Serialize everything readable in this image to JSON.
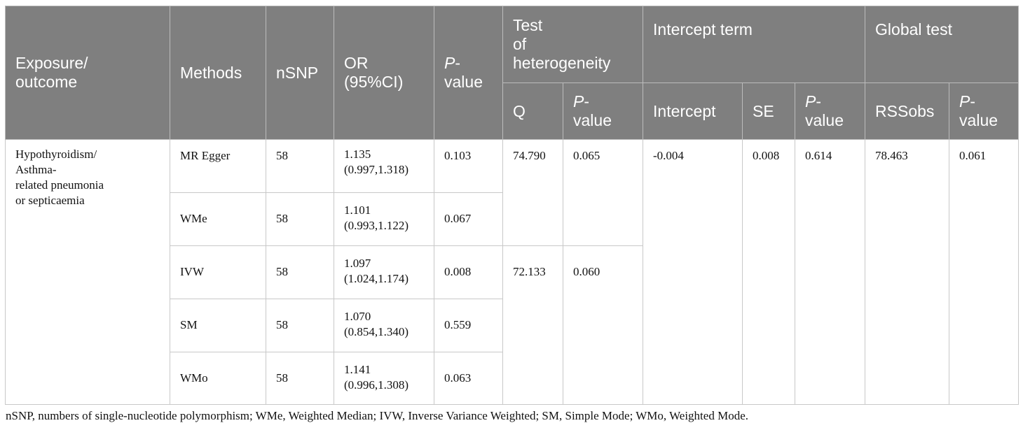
{
  "header": {
    "exposure_outcome": "Exposure/\noutcome",
    "methods": "Methods",
    "nsnp": "nSNP",
    "or_ci": "OR\n(95%CI)",
    "p_italic": "P",
    "p_rest": "-\nvalue",
    "test_heterogeneity": "Test\nof\nheterogeneity",
    "intercept_term": "Intercept term",
    "global_test": "Global test",
    "q": "Q",
    "intercept": "Intercept",
    "se": "SE",
    "rssobs": "RSSobs"
  },
  "exposure_outcome": "Hypothyroidism/\nAsthma-\nrelated pneumonia\nor septicaemia",
  "rows": [
    {
      "method": "MR Egger",
      "nsnp": "58",
      "or": "1.135\n(0.997,1.318)",
      "p": "0.103"
    },
    {
      "method": "WMe",
      "nsnp": "58",
      "or": "1.101\n(0.993,1.122)",
      "p": "0.067"
    },
    {
      "method": "IVW",
      "nsnp": "58",
      "or": "1.097\n(1.024,1.174)",
      "p": "0.008"
    },
    {
      "method": "SM",
      "nsnp": "58",
      "or": "1.070\n(0.854,1.340)",
      "p": "0.559"
    },
    {
      "method": "WMo",
      "nsnp": "58",
      "or": "1.141\n(0.996,1.308)",
      "p": "0.063"
    }
  ],
  "heterogeneity": [
    {
      "q": "74.790",
      "p": "0.065"
    },
    {
      "q": "72.133",
      "p": "0.060"
    }
  ],
  "intercept": {
    "value": "-0.004",
    "se": "0.008",
    "p": "0.614"
  },
  "global": {
    "rssobs": "78.463",
    "p": "0.061"
  },
  "footnote": "nSNP, numbers of single-nucleotide polymorphism; WMe, Weighted Median; IVW, Inverse Variance Weighted; SM, Simple Mode; WMo, Weighted Mode."
}
